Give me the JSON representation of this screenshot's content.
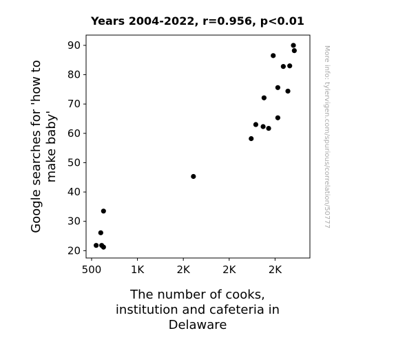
{
  "chart_data": {
    "type": "scatter",
    "title": "Years 2004-2022, r=0.956, p<0.01",
    "xlabel": [
      "The number of cooks,",
      "institution and cafeteria in",
      "Delaware"
    ],
    "ylabel": [
      "Google searches for 'how to",
      "make baby'"
    ],
    "side_note": "More info: tylervigen.com/spurious/correlation/50777",
    "xlim": [
      440,
      2880
    ],
    "ylim": [
      17.5,
      93.5
    ],
    "xticks": [
      {
        "value": 500,
        "label": "500"
      },
      {
        "value": 1000,
        "label": "1K"
      },
      {
        "value": 1500,
        "label": "2K"
      },
      {
        "value": 2000,
        "label": "2K"
      },
      {
        "value": 2500,
        "label": "2K"
      }
    ],
    "yticks": [
      {
        "value": 20,
        "label": "20"
      },
      {
        "value": 30,
        "label": "30"
      },
      {
        "value": 40,
        "label": "40"
      },
      {
        "value": 50,
        "label": "50"
      },
      {
        "value": 60,
        "label": "60"
      },
      {
        "value": 70,
        "label": "70"
      },
      {
        "value": 80,
        "label": "80"
      },
      {
        "value": 90,
        "label": "90"
      }
    ],
    "points": [
      {
        "x": 550,
        "y": 21.8
      },
      {
        "x": 600,
        "y": 26.1
      },
      {
        "x": 610,
        "y": 21.8
      },
      {
        "x": 630,
        "y": 21.2
      },
      {
        "x": 630,
        "y": 33.5
      },
      {
        "x": 1610,
        "y": 45.3
      },
      {
        "x": 2240,
        "y": 58.2
      },
      {
        "x": 2290,
        "y": 63.0
      },
      {
        "x": 2370,
        "y": 62.3
      },
      {
        "x": 2380,
        "y": 72.1
      },
      {
        "x": 2430,
        "y": 61.7
      },
      {
        "x": 2480,
        "y": 86.5
      },
      {
        "x": 2530,
        "y": 65.3
      },
      {
        "x": 2530,
        "y": 75.6
      },
      {
        "x": 2590,
        "y": 82.8
      },
      {
        "x": 2640,
        "y": 74.4
      },
      {
        "x": 2660,
        "y": 83.0
      },
      {
        "x": 2700,
        "y": 90.0
      },
      {
        "x": 2710,
        "y": 88.2
      }
    ],
    "marker_color": "#000000",
    "grid": false,
    "legend": "none"
  }
}
